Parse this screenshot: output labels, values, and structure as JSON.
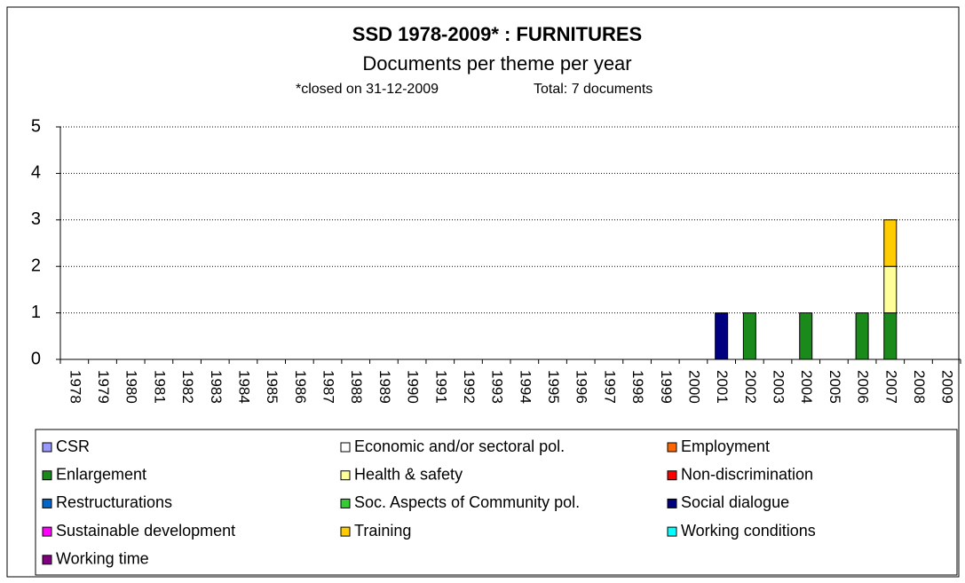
{
  "chart_data": {
    "type": "stacked_bar",
    "title": "SSD 1978-2009* :  FURNITURES",
    "subtitle": "Documents per theme per year",
    "note": "*closed on 31-12-2009",
    "total": "Total: 7 documents",
    "categories": [
      "1978",
      "1979",
      "1980",
      "1981",
      "1982",
      "1983",
      "1984",
      "1985",
      "1986",
      "1987",
      "1988",
      "1989",
      "1990",
      "1991",
      "1992",
      "1993",
      "1994",
      "1995",
      "1996",
      "1997",
      "1998",
      "1999",
      "2000",
      "2001",
      "2002",
      "2003",
      "2004",
      "2005",
      "2006",
      "2007",
      "2008",
      "2009"
    ],
    "series": [
      {
        "name": "CSR",
        "color": "#9999ff",
        "values": [
          0,
          0,
          0,
          0,
          0,
          0,
          0,
          0,
          0,
          0,
          0,
          0,
          0,
          0,
          0,
          0,
          0,
          0,
          0,
          0,
          0,
          0,
          0,
          0,
          0,
          0,
          0,
          0,
          0,
          0,
          0,
          0
        ]
      },
      {
        "name": "Economic and/or sectoral pol.",
        "color": "#ffffff",
        "values": [
          0,
          0,
          0,
          0,
          0,
          0,
          0,
          0,
          0,
          0,
          0,
          0,
          0,
          0,
          0,
          0,
          0,
          0,
          0,
          0,
          0,
          0,
          0,
          0,
          0,
          0,
          0,
          0,
          0,
          0,
          0,
          0
        ]
      },
      {
        "name": "Employment",
        "color": "#ff6600",
        "values": [
          0,
          0,
          0,
          0,
          0,
          0,
          0,
          0,
          0,
          0,
          0,
          0,
          0,
          0,
          0,
          0,
          0,
          0,
          0,
          0,
          0,
          0,
          0,
          0,
          0,
          0,
          0,
          0,
          0,
          0,
          0,
          0
        ]
      },
      {
        "name": "Enlargement",
        "color": "#1a8a1a",
        "values": [
          0,
          0,
          0,
          0,
          0,
          0,
          0,
          0,
          0,
          0,
          0,
          0,
          0,
          0,
          0,
          0,
          0,
          0,
          0,
          0,
          0,
          0,
          0,
          0,
          1,
          0,
          1,
          0,
          1,
          1,
          0,
          0
        ]
      },
      {
        "name": "Health & safety",
        "color": "#ffff99",
        "values": [
          0,
          0,
          0,
          0,
          0,
          0,
          0,
          0,
          0,
          0,
          0,
          0,
          0,
          0,
          0,
          0,
          0,
          0,
          0,
          0,
          0,
          0,
          0,
          0,
          0,
          0,
          0,
          0,
          0,
          1,
          0,
          0
        ]
      },
      {
        "name": "Non-discrimination",
        "color": "#ff0000",
        "values": [
          0,
          0,
          0,
          0,
          0,
          0,
          0,
          0,
          0,
          0,
          0,
          0,
          0,
          0,
          0,
          0,
          0,
          0,
          0,
          0,
          0,
          0,
          0,
          0,
          0,
          0,
          0,
          0,
          0,
          0,
          0,
          0
        ]
      },
      {
        "name": "Restructurations",
        "color": "#0066cc",
        "values": [
          0,
          0,
          0,
          0,
          0,
          0,
          0,
          0,
          0,
          0,
          0,
          0,
          0,
          0,
          0,
          0,
          0,
          0,
          0,
          0,
          0,
          0,
          0,
          0,
          0,
          0,
          0,
          0,
          0,
          0,
          0,
          0
        ]
      },
      {
        "name": "Soc. Aspects of Community pol.",
        "color": "#33cc33",
        "values": [
          0,
          0,
          0,
          0,
          0,
          0,
          0,
          0,
          0,
          0,
          0,
          0,
          0,
          0,
          0,
          0,
          0,
          0,
          0,
          0,
          0,
          0,
          0,
          0,
          0,
          0,
          0,
          0,
          0,
          0,
          0,
          0
        ]
      },
      {
        "name": "Social dialogue",
        "color": "#000080",
        "values": [
          0,
          0,
          0,
          0,
          0,
          0,
          0,
          0,
          0,
          0,
          0,
          0,
          0,
          0,
          0,
          0,
          0,
          0,
          0,
          0,
          0,
          0,
          0,
          1,
          0,
          0,
          0,
          0,
          0,
          0,
          0,
          0
        ]
      },
      {
        "name": "Sustainable development",
        "color": "#ff00ff",
        "values": [
          0,
          0,
          0,
          0,
          0,
          0,
          0,
          0,
          0,
          0,
          0,
          0,
          0,
          0,
          0,
          0,
          0,
          0,
          0,
          0,
          0,
          0,
          0,
          0,
          0,
          0,
          0,
          0,
          0,
          0,
          0,
          0
        ]
      },
      {
        "name": "Training",
        "color": "#ffcc00",
        "values": [
          0,
          0,
          0,
          0,
          0,
          0,
          0,
          0,
          0,
          0,
          0,
          0,
          0,
          0,
          0,
          0,
          0,
          0,
          0,
          0,
          0,
          0,
          0,
          0,
          0,
          0,
          0,
          0,
          0,
          1,
          0,
          0
        ]
      },
      {
        "name": "Working conditions",
        "color": "#00ffff",
        "values": [
          0,
          0,
          0,
          0,
          0,
          0,
          0,
          0,
          0,
          0,
          0,
          0,
          0,
          0,
          0,
          0,
          0,
          0,
          0,
          0,
          0,
          0,
          0,
          0,
          0,
          0,
          0,
          0,
          0,
          0,
          0,
          0
        ]
      },
      {
        "name": "Working time",
        "color": "#800080",
        "values": [
          0,
          0,
          0,
          0,
          0,
          0,
          0,
          0,
          0,
          0,
          0,
          0,
          0,
          0,
          0,
          0,
          0,
          0,
          0,
          0,
          0,
          0,
          0,
          0,
          0,
          0,
          0,
          0,
          0,
          0,
          0,
          0
        ]
      }
    ],
    "ylim": [
      0,
      5
    ],
    "yticks": [
      0,
      1,
      2,
      3,
      4,
      5
    ],
    "grid": true,
    "legend": "bottom"
  }
}
